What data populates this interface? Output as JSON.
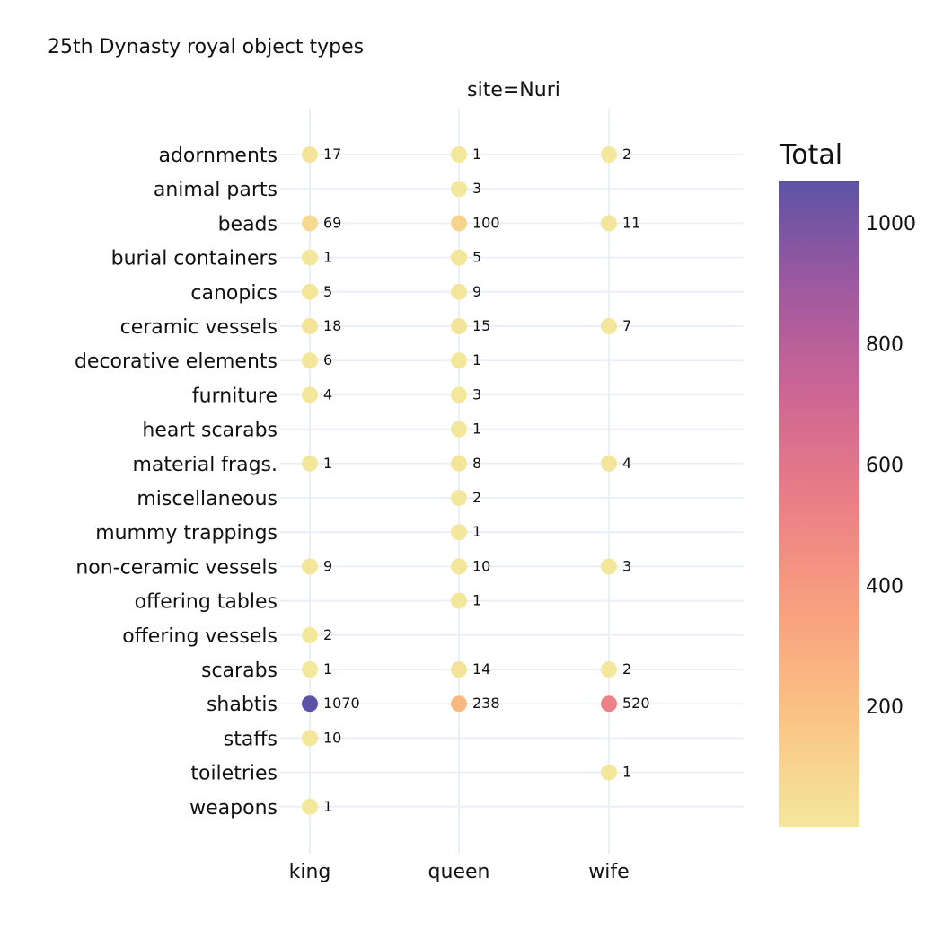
{
  "chart_data": {
    "type": "scatter",
    "title": "25th Dynasty royal object types",
    "facet_label": "site=Nuri",
    "x_categories": [
      "king",
      "queen",
      "wife"
    ],
    "y_categories": [
      "adornments",
      "animal parts",
      "beads",
      "burial containers",
      "canopics",
      "ceramic vessels",
      "decorative elements",
      "furniture",
      "heart scarabs",
      "material frags.",
      "miscellaneous",
      "mummy trappings",
      "non-ceramic vessels",
      "offering tables",
      "offering vessels",
      "scarabs",
      "shabtis",
      "staffs",
      "toiletries",
      "weapons"
    ],
    "points": [
      {
        "x": "king",
        "y": "adornments",
        "value": 17
      },
      {
        "x": "queen",
        "y": "adornments",
        "value": 1
      },
      {
        "x": "wife",
        "y": "adornments",
        "value": 2
      },
      {
        "x": "queen",
        "y": "animal parts",
        "value": 3
      },
      {
        "x": "king",
        "y": "beads",
        "value": 69
      },
      {
        "x": "queen",
        "y": "beads",
        "value": 100
      },
      {
        "x": "wife",
        "y": "beads",
        "value": 11
      },
      {
        "x": "king",
        "y": "burial containers",
        "value": 1
      },
      {
        "x": "queen",
        "y": "burial containers",
        "value": 5
      },
      {
        "x": "king",
        "y": "canopics",
        "value": 5
      },
      {
        "x": "queen",
        "y": "canopics",
        "value": 9
      },
      {
        "x": "king",
        "y": "ceramic vessels",
        "value": 18
      },
      {
        "x": "queen",
        "y": "ceramic vessels",
        "value": 15
      },
      {
        "x": "wife",
        "y": "ceramic vessels",
        "value": 7
      },
      {
        "x": "king",
        "y": "decorative elements",
        "value": 6
      },
      {
        "x": "queen",
        "y": "decorative elements",
        "value": 1
      },
      {
        "x": "king",
        "y": "furniture",
        "value": 4
      },
      {
        "x": "queen",
        "y": "furniture",
        "value": 3
      },
      {
        "x": "queen",
        "y": "heart scarabs",
        "value": 1
      },
      {
        "x": "king",
        "y": "material frags.",
        "value": 1
      },
      {
        "x": "queen",
        "y": "material frags.",
        "value": 8
      },
      {
        "x": "wife",
        "y": "material frags.",
        "value": 4
      },
      {
        "x": "queen",
        "y": "miscellaneous",
        "value": 2
      },
      {
        "x": "queen",
        "y": "mummy trappings",
        "value": 1
      },
      {
        "x": "king",
        "y": "non-ceramic vessels",
        "value": 9
      },
      {
        "x": "queen",
        "y": "non-ceramic vessels",
        "value": 10
      },
      {
        "x": "wife",
        "y": "non-ceramic vessels",
        "value": 3
      },
      {
        "x": "queen",
        "y": "offering tables",
        "value": 1
      },
      {
        "x": "king",
        "y": "offering vessels",
        "value": 2
      },
      {
        "x": "king",
        "y": "scarabs",
        "value": 1
      },
      {
        "x": "queen",
        "y": "scarabs",
        "value": 14
      },
      {
        "x": "wife",
        "y": "scarabs",
        "value": 2
      },
      {
        "x": "king",
        "y": "shabtis",
        "value": 1070
      },
      {
        "x": "queen",
        "y": "shabtis",
        "value": 238
      },
      {
        "x": "wife",
        "y": "shabtis",
        "value": 520
      },
      {
        "x": "king",
        "y": "staffs",
        "value": 10
      },
      {
        "x": "wife",
        "y": "toiletries",
        "value": 1
      },
      {
        "x": "king",
        "y": "weapons",
        "value": 1
      }
    ],
    "colorbar": {
      "title": "Total",
      "range": [
        1,
        1070
      ],
      "ticks": [
        200,
        400,
        600,
        800,
        1000
      ],
      "colorscale": [
        "#f3e79b",
        "#fac484",
        "#f8a07e",
        "#eb7f86",
        "#ce6693",
        "#a059a0",
        "#5c53a5"
      ]
    },
    "grid": true,
    "legend_placement": "right"
  }
}
